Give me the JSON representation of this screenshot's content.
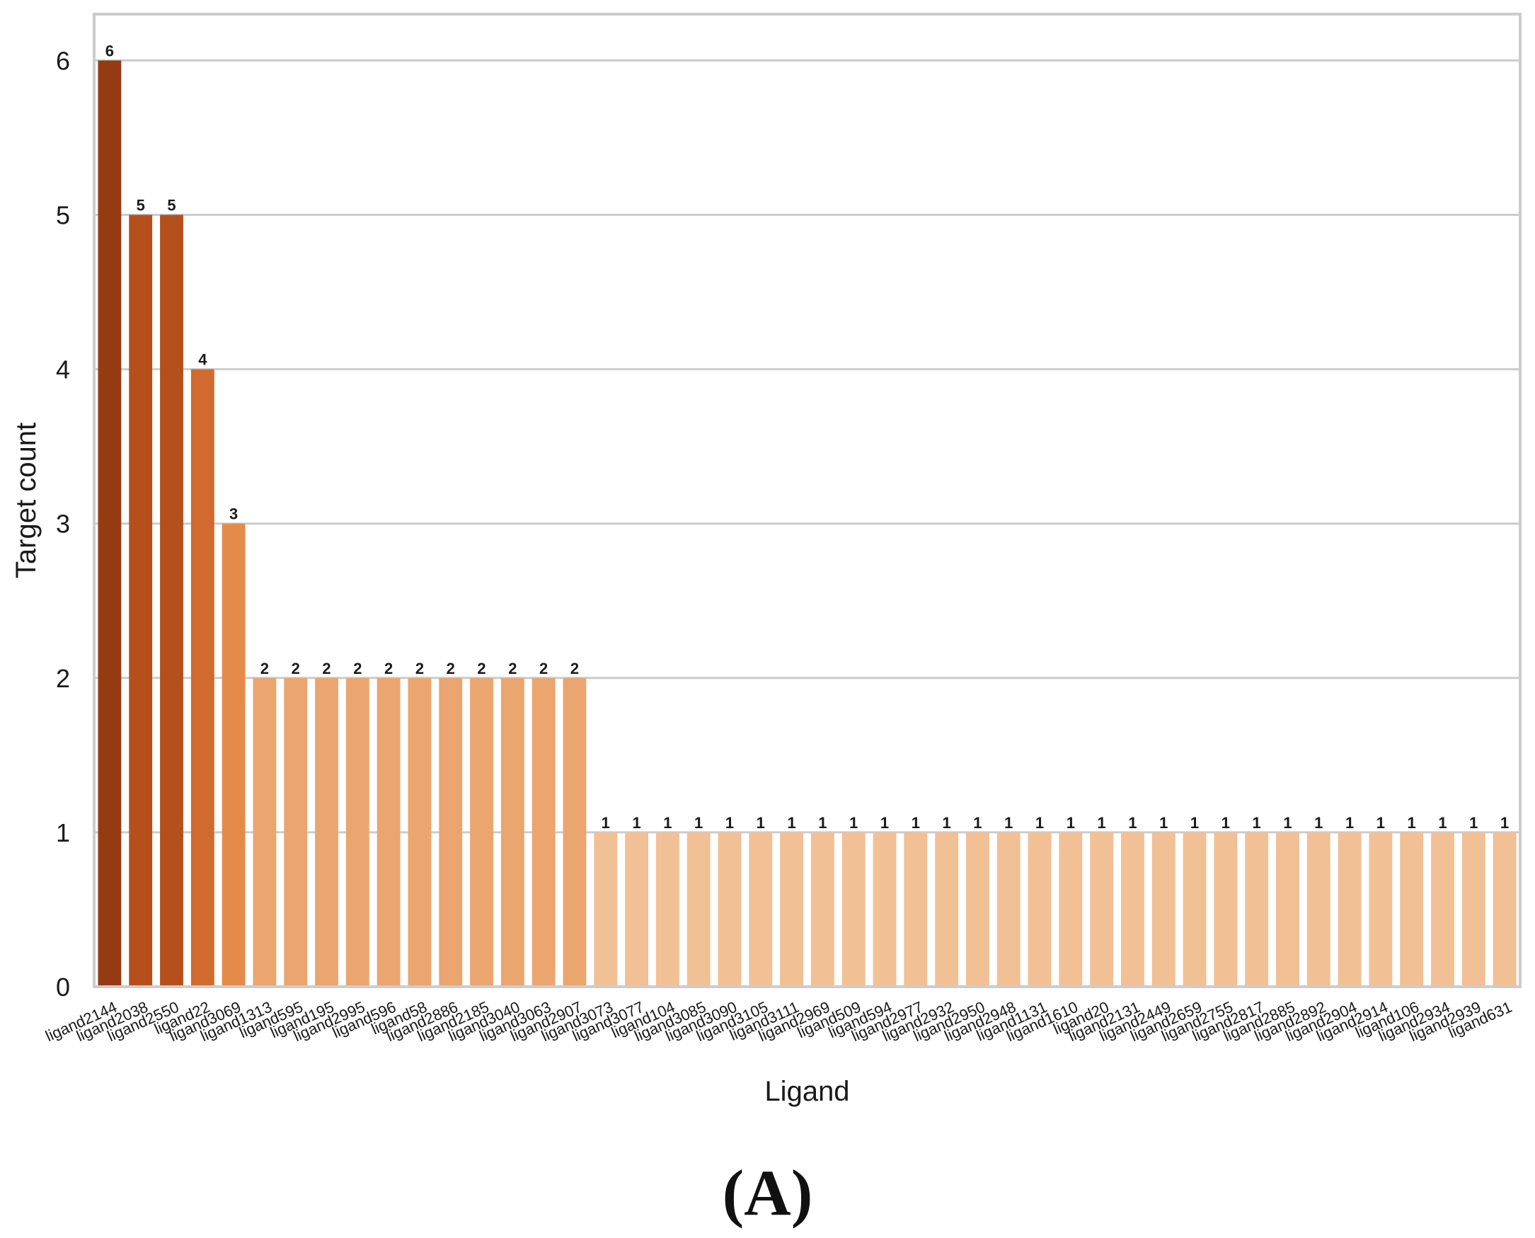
{
  "figure_label": "(A)",
  "chart_data": {
    "type": "bar",
    "title": "",
    "xlabel": "Ligand",
    "ylabel": "Target count",
    "ylim": [
      0,
      6.3
    ],
    "yticks": [
      0,
      1,
      2,
      3,
      4,
      5,
      6
    ],
    "grid": true,
    "legend": "none",
    "categories": [
      "ligand2144",
      "ligand2038",
      "ligand2550",
      "ligand22",
      "ligand3069",
      "ligand1313",
      "ligand595",
      "ligand195",
      "ligand2995",
      "ligand596",
      "ligand58",
      "ligand2886",
      "ligand2185",
      "ligand3040",
      "ligand3063",
      "ligand2907",
      "ligand3073",
      "ligand3077",
      "ligand104",
      "ligand3085",
      "ligand3090",
      "ligand3105",
      "ligand3111",
      "ligand2969",
      "ligand509",
      "ligand594",
      "ligand2977",
      "ligand2932",
      "ligand2950",
      "ligand2948",
      "ligand1131",
      "ligand1610",
      "ligand20",
      "ligand2131",
      "ligand2449",
      "ligand2659",
      "ligand2755",
      "ligand2817",
      "ligand2885",
      "ligand2892",
      "ligand2904",
      "ligand2914",
      "ligand106",
      "ligand2934",
      "ligand2939",
      "ligand631"
    ],
    "values": [
      6,
      5,
      5,
      4,
      3,
      2,
      2,
      2,
      2,
      2,
      2,
      2,
      2,
      2,
      2,
      2,
      1,
      1,
      1,
      1,
      1,
      1,
      1,
      1,
      1,
      1,
      1,
      1,
      1,
      1,
      1,
      1,
      1,
      1,
      1,
      1,
      1,
      1,
      1,
      1,
      1,
      1,
      1,
      1,
      1,
      1
    ],
    "data_labels": [
      "6",
      "5",
      "5",
      "4",
      "3",
      "2",
      "2",
      "2",
      "2",
      "2",
      "2",
      "2",
      "2",
      "2",
      "2",
      "2",
      "1",
      "1",
      "1",
      "1",
      "1",
      "1",
      "1",
      "1",
      "1",
      "1",
      "1",
      "1",
      "1",
      "1",
      "1",
      "1",
      "1",
      "1",
      "1",
      "1",
      "1",
      "1",
      "1",
      "1",
      "1",
      "1",
      "1",
      "1",
      "1",
      "1"
    ],
    "colors": {
      "6": "#943b14",
      "5": "#b5501d",
      "4": "#d16a2f",
      "3": "#e58b4a",
      "2": "#eba56f",
      "1": "#f1c095"
    },
    "grid_color": "#cccccc",
    "frame_color": "#cccccc"
  }
}
